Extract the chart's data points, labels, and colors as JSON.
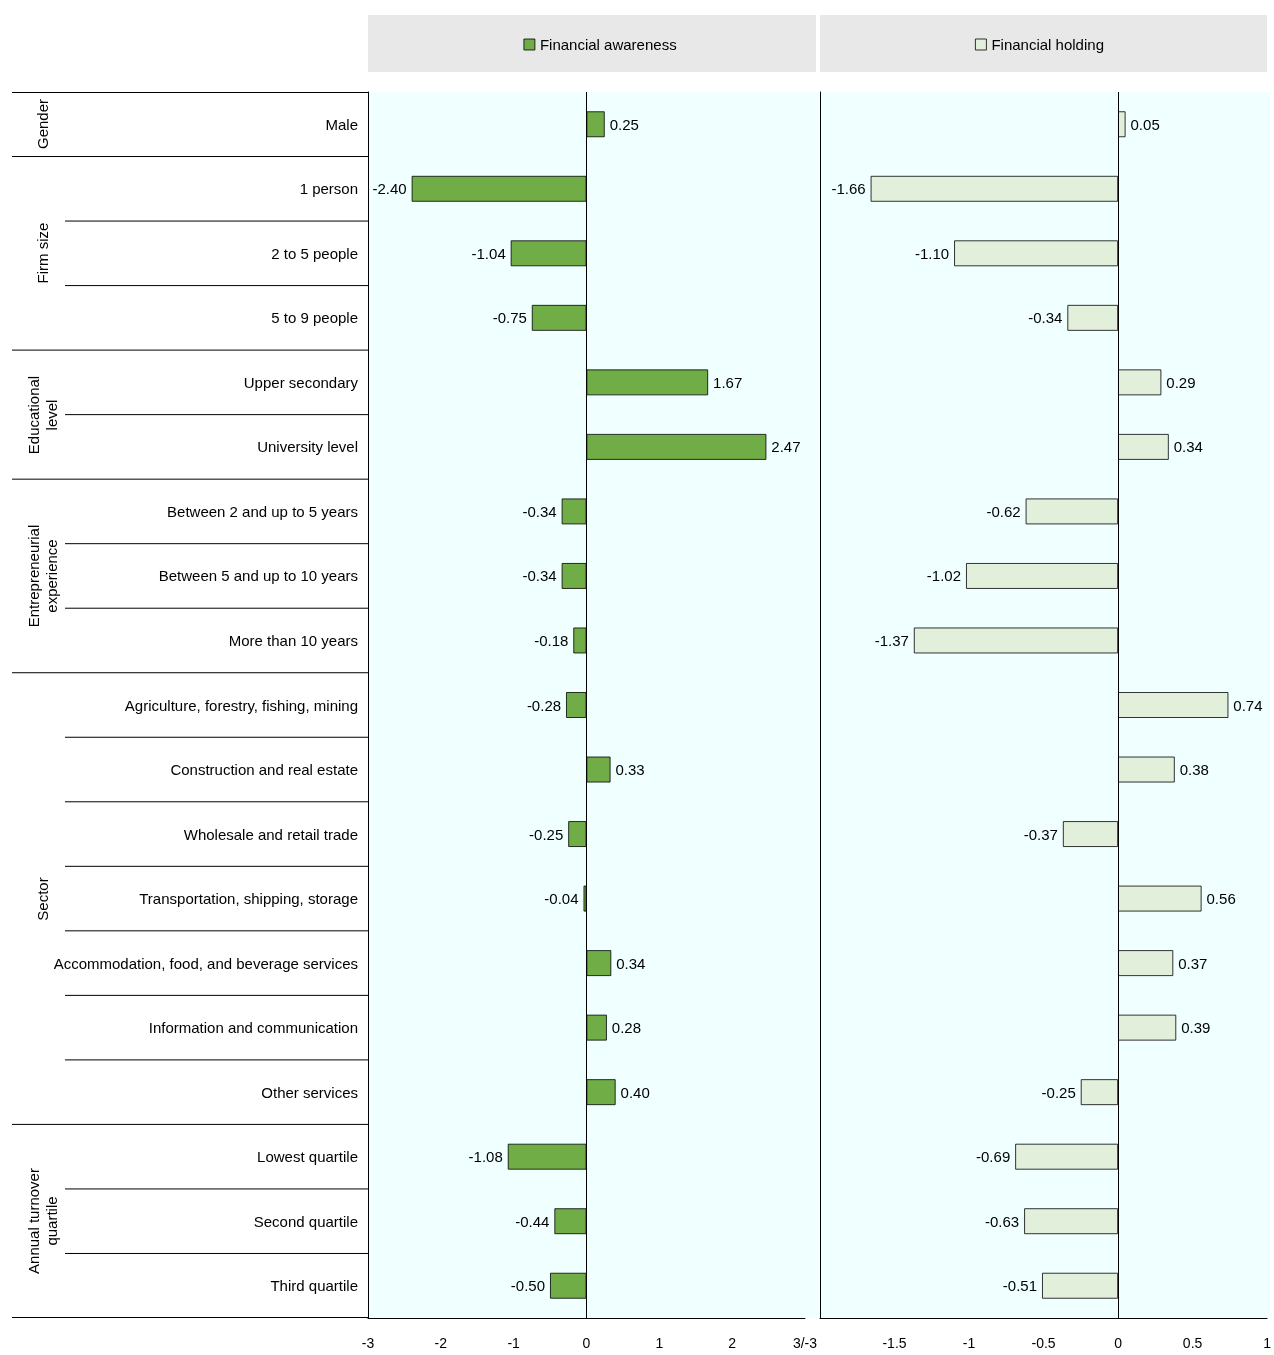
{
  "chart_data": [
    {
      "type": "bar",
      "orientation": "horizontal",
      "legend": "top",
      "tick_labels": "xy",
      "grid": false,
      "categories": [
        "Male",
        "1 person",
        "2 to 5 people",
        "5 to 9 people",
        "Upper secondary",
        "University level",
        "Between 2 and up to 5 years",
        "Between 5 and up to 10 years",
        "More than 10 years",
        "Agriculture, forestry, fishing, mining",
        "Construction and real estate",
        "Wholesale and retail trade",
        "Transportation, shipping, storage",
        "Accommodation, food, and beverage services",
        "Information and communication",
        "Other services",
        "Lowest quartile",
        "Second quartile",
        "Third quartile"
      ],
      "series": [
        {
          "name": "Financial awareness",
          "color": "#70ad47",
          "values": [
            0.25,
            -2.4,
            -1.04,
            -0.75,
            1.67,
            2.47,
            -0.34,
            -0.34,
            -0.18,
            -0.28,
            0.33,
            -0.25,
            -0.04,
            0.34,
            0.28,
            0.4,
            -1.08,
            -0.44,
            -0.5
          ],
          "value_labels": [
            "0.25",
            "-2.40",
            "-1.04",
            "-0.75",
            "1.67",
            "2.47",
            "-0.34",
            "-0.34",
            "-0.18",
            "-0.28",
            "0.33",
            "-0.25",
            "-0.04",
            "0.34",
            "0.28",
            "0.40",
            "-1.08",
            "-0.44",
            "-0.50"
          ]
        }
      ],
      "ref_lines": [
        {
          "axis": "x",
          "value": 0,
          "color": "#000000",
          "line_style": "solid"
        }
      ],
      "xlim": [
        -3,
        3
      ],
      "xticks": [
        -3,
        -2,
        -1,
        0,
        1,
        2,
        {
          "value": 3,
          "label": "3/-3"
        }
      ],
      "annotations": [
        "Gender",
        "Firm size",
        "Educational level",
        "Entrepreneurial experience",
        "Sector",
        "Annual turnover quartile"
      ]
    },
    {
      "type": "bar",
      "orientation": "horizontal",
      "legend": "top",
      "tick_labels": "x",
      "grid": false,
      "categories": [
        null,
        null,
        null,
        null,
        null,
        null,
        null,
        null,
        null,
        null,
        null,
        null,
        null,
        null,
        null,
        null,
        null,
        null,
        null
      ],
      "series": [
        {
          "name": "Financial holding",
          "color": "#e2efda",
          "values": [
            0.05,
            -1.66,
            -1.1,
            -0.34,
            0.29,
            0.34,
            -0.62,
            -1.02,
            -1.37,
            0.74,
            0.38,
            -0.37,
            0.56,
            0.37,
            0.39,
            -0.25,
            -0.69,
            -0.63,
            -0.51
          ],
          "value_labels": [
            "0.05",
            "-1.66",
            "-1.10",
            "-0.34",
            "0.29",
            "0.34",
            "-0.62",
            "-1.02",
            "-1.37",
            "0.74",
            "0.38",
            "-0.37",
            "0.56",
            "0.37",
            "0.39",
            "-0.25",
            "-0.69",
            "-0.63",
            "-0.51"
          ]
        }
      ],
      "ref_lines": [
        {
          "axis": "x",
          "value": 0,
          "color": "#000000",
          "line_style": "solid"
        }
      ],
      "xlim": [
        -2,
        1
      ],
      "xticks": [
        -1.5,
        -1,
        -0.5,
        0,
        0.5,
        1
      ]
    }
  ]
}
